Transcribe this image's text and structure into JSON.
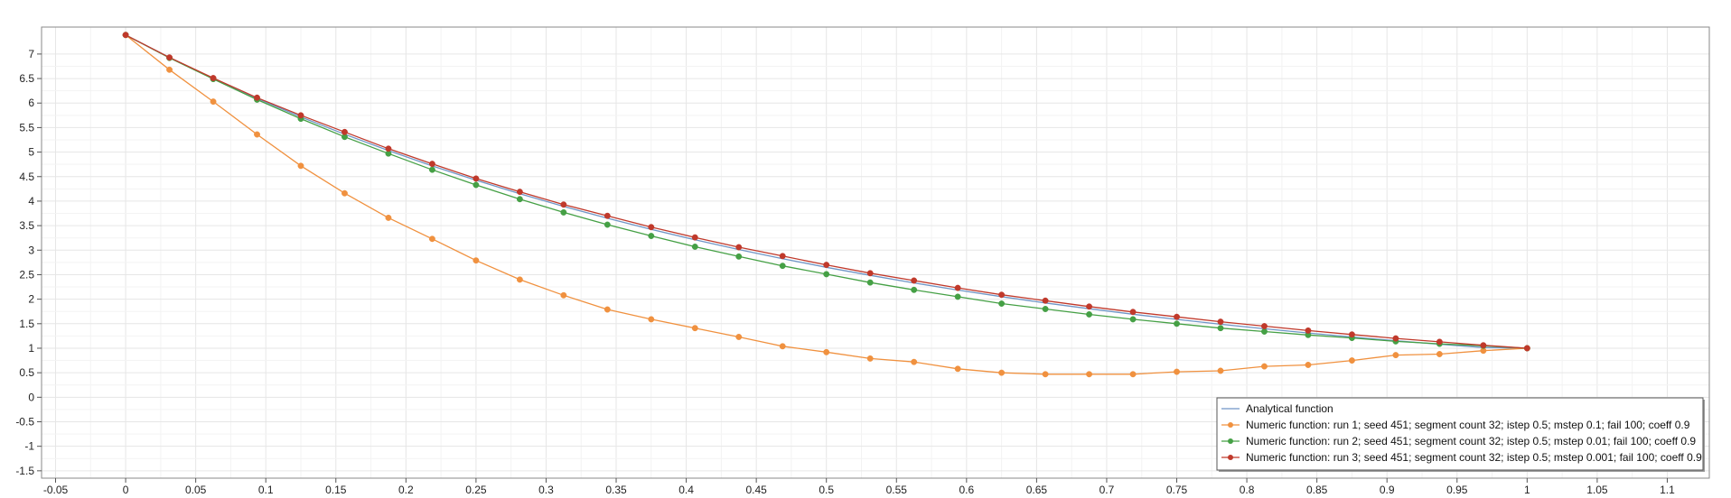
{
  "chart_data": {
    "type": "line",
    "title": "",
    "xlabel": "",
    "ylabel": "",
    "xlim": [
      -0.06,
      1.13
    ],
    "ylim": [
      -1.65,
      7.55
    ],
    "grid": true,
    "legend_position": "bottom-right",
    "x_ticks": [
      -0.05,
      0,
      0.05,
      0.1,
      0.15,
      0.2,
      0.25,
      0.3,
      0.35,
      0.4,
      0.45,
      0.5,
      0.55,
      0.6,
      0.65,
      0.7,
      0.75,
      0.8,
      0.85,
      0.9,
      0.95,
      1,
      1.05,
      1.1
    ],
    "x_tick_labels": [
      "-0.05",
      "0",
      "0.05",
      "0.1",
      "0.15",
      "0.2",
      "0.25",
      "0.3",
      "0.35",
      "0.4",
      "0.45",
      "0.5",
      "0.55",
      "0.6",
      "0.65",
      "0.7",
      "0.75",
      "0.8",
      "0.85",
      "0.9",
      "0.95",
      "1",
      "1.05",
      "1.1"
    ],
    "y_ticks": [
      -1.5,
      -1,
      -0.5,
      0,
      0.5,
      1,
      1.5,
      2,
      2.5,
      3,
      3.5,
      4,
      4.5,
      5,
      5.5,
      6,
      6.5,
      7
    ],
    "y_tick_labels": [
      "-1.5",
      "-1",
      "-0.5",
      "0",
      "0.5",
      "1",
      "1.5",
      "2",
      "2.5",
      "3",
      "3.5",
      "4",
      "4.5",
      "5",
      "5.5",
      "6",
      "6.5",
      "7"
    ],
    "x": [
      0,
      0.03125,
      0.0625,
      0.09375,
      0.125,
      0.15625,
      0.1875,
      0.21875,
      0.25,
      0.28125,
      0.3125,
      0.34375,
      0.375,
      0.40625,
      0.4375,
      0.46875,
      0.5,
      0.53125,
      0.5625,
      0.59375,
      0.625,
      0.65625,
      0.6875,
      0.71875,
      0.75,
      0.78125,
      0.8125,
      0.84375,
      0.875,
      0.90625,
      0.9375,
      0.96875,
      1
    ],
    "series": [
      {
        "name": "Analytical function",
        "color": "#6f95c6",
        "markers": false,
        "values": [
          7.389,
          6.93,
          6.5,
          6.097,
          5.718,
          5.364,
          5.031,
          4.718,
          4.425,
          4.151,
          3.893,
          3.651,
          3.425,
          3.212,
          3.013,
          2.826,
          2.651,
          2.486,
          2.332,
          2.187,
          2.052,
          1.924,
          1.805,
          1.693,
          1.588,
          1.489,
          1.397,
          1.31,
          1.229,
          1.153,
          1.081,
          1.014,
          1.0
        ]
      },
      {
        "name": "Numeric function: run 1; seed 451; segment count 32; istep 0.5; mstep 0.1; fail 100; coeff 0.9",
        "color": "#f0913f",
        "markers": true,
        "values": [
          7.389,
          6.68,
          6.03,
          5.36,
          4.72,
          4.16,
          3.66,
          3.23,
          2.79,
          2.4,
          2.08,
          1.79,
          1.59,
          1.41,
          1.23,
          1.04,
          0.92,
          0.79,
          0.72,
          0.58,
          0.5,
          0.47,
          0.47,
          0.47,
          0.52,
          0.54,
          0.63,
          0.66,
          0.75,
          0.86,
          0.88,
          0.95,
          1.0
        ]
      },
      {
        "name": "Numeric function: run 2; seed 451; segment count 32; istep 0.5; mstep 0.01; fail 100; coeff 0.9",
        "color": "#45a045",
        "markers": true,
        "values": [
          7.389,
          6.92,
          6.49,
          6.07,
          5.68,
          5.31,
          4.97,
          4.64,
          4.33,
          4.04,
          3.77,
          3.52,
          3.29,
          3.07,
          2.87,
          2.68,
          2.51,
          2.34,
          2.19,
          2.05,
          1.91,
          1.8,
          1.69,
          1.59,
          1.5,
          1.41,
          1.34,
          1.27,
          1.21,
          1.14,
          1.09,
          1.05,
          1.0
        ]
      },
      {
        "name": "Numeric function: run 3; seed 451; segment count 32; istep 0.5; mstep 0.001; fail 100; coeff 0.9",
        "color": "#c0392b",
        "markers": true,
        "values": [
          7.389,
          6.93,
          6.51,
          6.11,
          5.75,
          5.41,
          5.07,
          4.76,
          4.46,
          4.19,
          3.93,
          3.7,
          3.47,
          3.26,
          3.06,
          2.88,
          2.7,
          2.53,
          2.38,
          2.23,
          2.09,
          1.97,
          1.85,
          1.74,
          1.64,
          1.54,
          1.45,
          1.36,
          1.28,
          1.2,
          1.13,
          1.06,
          1.0
        ]
      }
    ]
  }
}
